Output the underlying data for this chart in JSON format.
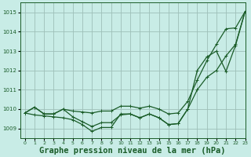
{
  "title": "Graphe pression niveau de la mer (hPa)",
  "bg_color": "#c8ece6",
  "grid_color": "#9dbfb8",
  "line_color": "#1a5c28",
  "xlim": [
    -0.5,
    23
  ],
  "ylim": [
    1008.5,
    1015.5
  ],
  "yticks": [
    1009,
    1010,
    1011,
    1012,
    1013,
    1014,
    1015
  ],
  "xticks": [
    0,
    1,
    2,
    3,
    4,
    5,
    6,
    7,
    8,
    9,
    10,
    11,
    12,
    13,
    14,
    15,
    16,
    17,
    18,
    19,
    20,
    21,
    22,
    23
  ],
  "line_top_x": [
    0,
    1,
    2,
    3,
    4,
    5,
    6,
    7,
    8,
    9,
    10,
    11,
    12,
    13,
    14,
    15,
    16,
    17,
    18,
    19,
    20,
    21,
    22,
    23
  ],
  "line_top_y": [
    1009.8,
    1010.1,
    1009.75,
    1009.75,
    1010.0,
    1009.9,
    1009.85,
    1009.8,
    1009.9,
    1009.9,
    1010.15,
    1010.15,
    1010.05,
    1010.15,
    1010.0,
    1009.75,
    1009.8,
    1010.4,
    1011.5,
    1012.5,
    1013.35,
    1014.15,
    1014.2,
    1015.05
  ],
  "line_mid_x": [
    0,
    1,
    2,
    3,
    4,
    5,
    6,
    7,
    8,
    9,
    10,
    11,
    12,
    13,
    14,
    15,
    16,
    17,
    18,
    19,
    20,
    21,
    22,
    23
  ],
  "line_mid_y": [
    1009.8,
    1010.1,
    1009.75,
    1009.75,
    1010.0,
    1009.6,
    1009.35,
    1009.1,
    1009.3,
    1009.3,
    1009.7,
    1009.75,
    1009.55,
    1009.75,
    1009.55,
    1009.2,
    1009.25,
    1010.0,
    1011.0,
    1011.65,
    1012.0,
    1012.75,
    1013.35,
    1015.05
  ],
  "line_bot_x": [
    0,
    1,
    2,
    3,
    4,
    5,
    6,
    7,
    8,
    9,
    10,
    11,
    12,
    13,
    14,
    15,
    16,
    17,
    18,
    19,
    20,
    21,
    22,
    23
  ],
  "line_bot_y": [
    1009.8,
    1009.7,
    1009.65,
    1009.6,
    1009.55,
    1009.45,
    1009.2,
    1008.85,
    1009.05,
    1009.05,
    1009.75,
    1009.75,
    1009.55,
    1009.75,
    1009.55,
    1009.2,
    1009.25,
    1010.0,
    1012.0,
    1012.7,
    1013.0,
    1011.95,
    1013.3,
    1015.05
  ],
  "marker_size": 3.0,
  "linewidth": 0.9,
  "title_fontsize": 7.5
}
